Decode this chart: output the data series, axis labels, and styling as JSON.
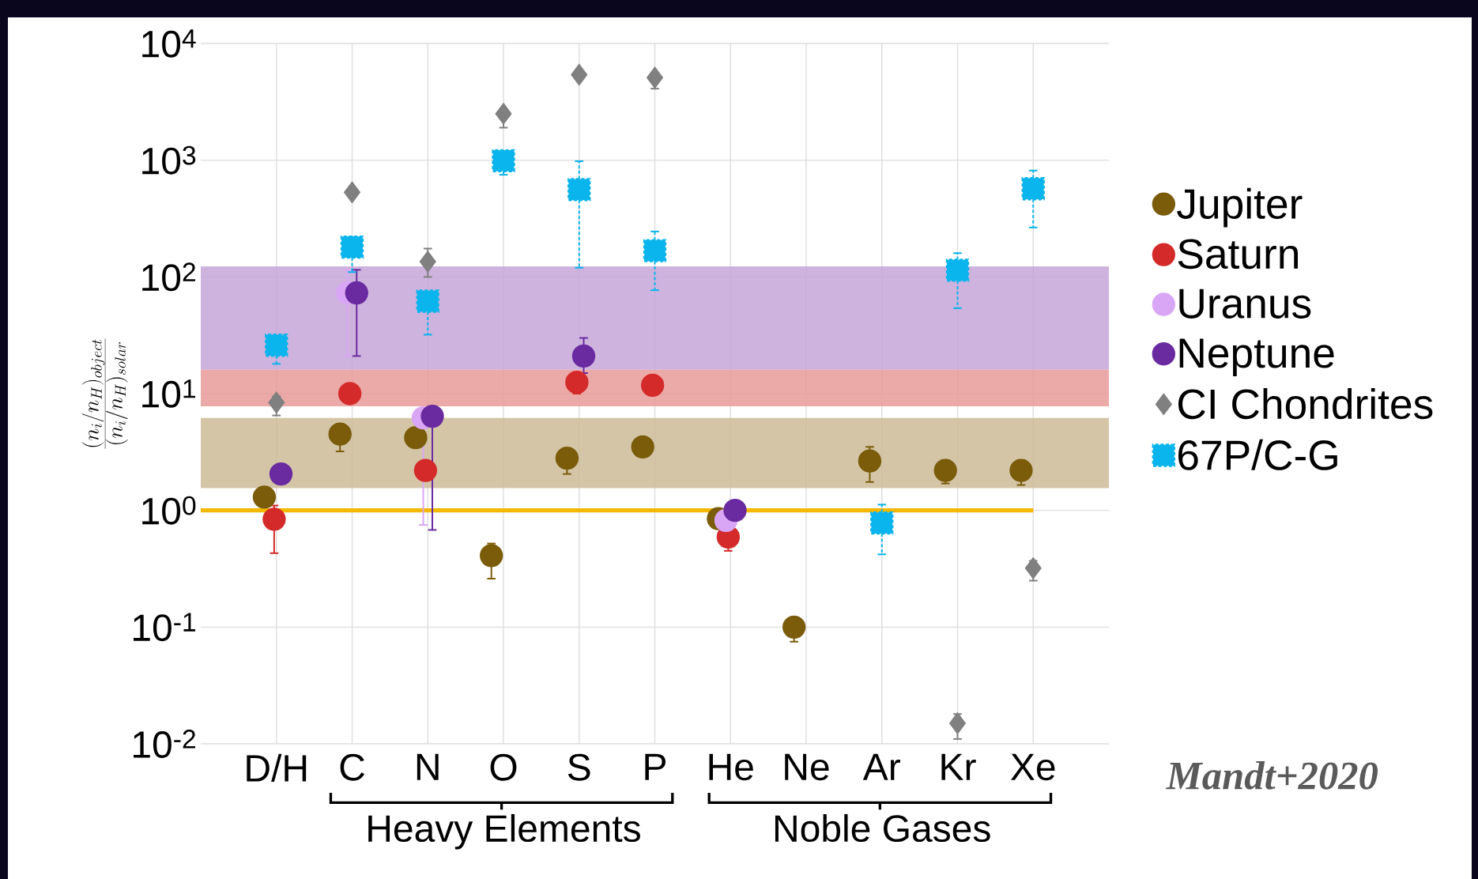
{
  "chart_data": {
    "type": "scatter",
    "categories": [
      "D/H",
      "C",
      "N",
      "O",
      "S",
      "P",
      "He",
      "Ne",
      "Ar",
      "Kr",
      "Xe"
    ],
    "ylabel": "\\frac{(n_i/n_H)_{object}}{(n_i/n_H)_{solar}}",
    "log": "y",
    "ylim": [
      0.01,
      10000
    ],
    "yticks": [
      {
        "value": 0.01,
        "label": "10$^{-2}$"
      },
      {
        "value": 0.1,
        "label": "10$^{-1}$"
      },
      {
        "value": 1,
        "label": "10$^{0}$"
      },
      {
        "value": 10,
        "label": "10$^{1}$"
      },
      {
        "value": 100,
        "label": "10$^{2}$"
      },
      {
        "value": 1000,
        "label": "10$^{3}$"
      },
      {
        "value": 10000,
        "label": "10$^{4}$"
      }
    ],
    "grid": true,
    "legend": "right",
    "series": [
      {
        "name": "Jupiter",
        "color": "#7a5c0a",
        "marker": "circle",
        "values": [
          1.3,
          4.5,
          4.2,
          0.41,
          2.8,
          3.5,
          0.85,
          0.1,
          2.65,
          2.2,
          2.2
        ],
        "errors": [
          null,
          [
            3.2,
            5.5
          ],
          null,
          [
            0.26,
            0.52
          ],
          [
            2.05,
            2.8
          ],
          null,
          null,
          [
            0.075,
            0.12
          ],
          [
            1.75,
            3.5
          ],
          [
            1.7,
            2.7
          ],
          [
            1.65,
            2.7
          ]
        ]
      },
      {
        "name": "Saturn",
        "color": "#d42a2a",
        "marker": "circle",
        "values": [
          0.84,
          10,
          2.2,
          null,
          12.5,
          11.8,
          0.59,
          null,
          null,
          null,
          null
        ],
        "errors": [
          [
            0.43,
            1.1
          ],
          null,
          null,
          null,
          [
            10,
            15
          ],
          null,
          [
            0.45,
            0.7
          ],
          null,
          null,
          null,
          null
        ]
      },
      {
        "name": "Uranus",
        "color": "#d9a6f5",
        "marker": "circle",
        "values": [
          null,
          73,
          6.2,
          null,
          null,
          null,
          0.82,
          null,
          null,
          null,
          null
        ],
        "errors": [
          null,
          [
            21,
            115
          ],
          [
            0.75,
            6.2
          ],
          null,
          null,
          null,
          null,
          null,
          null,
          null,
          null
        ]
      },
      {
        "name": "Neptune",
        "color": "#6a2aa0",
        "marker": "circle",
        "values": [
          2.05,
          73,
          6.4,
          null,
          21,
          null,
          1.0,
          null,
          null,
          null,
          null
        ],
        "errors": [
          null,
          [
            21,
            115
          ],
          [
            0.68,
            6.4
          ],
          null,
          [
            15,
            30
          ],
          null,
          null,
          null,
          null,
          null,
          null
        ]
      },
      {
        "name": "CI Chondrites",
        "color": "#808080",
        "marker": "diamond",
        "values": [
          8.4,
          530,
          135,
          2500,
          5400,
          5100,
          null,
          null,
          null,
          0.015,
          0.32
        ],
        "errors": [
          [
            6.5,
            9.5
          ],
          null,
          [
            100,
            175
          ],
          [
            1900,
            2500
          ],
          null,
          [
            4100,
            5100
          ],
          null,
          null,
          null,
          [
            0.011,
            0.018
          ],
          [
            0.25,
            0.37
          ]
        ]
      },
      {
        "name": "67P/C-G",
        "color": "#0ab4ec",
        "marker": "square",
        "values": [
          26,
          180,
          62,
          990,
          560,
          168,
          null,
          null,
          0.78,
          114,
          570
        ],
        "errors": [
          [
            18,
            26
          ],
          [
            110,
            220
          ],
          [
            32,
            62
          ],
          [
            750,
            990
          ],
          [
            120,
            980
          ],
          [
            77,
            245
          ],
          null,
          null,
          [
            0.42,
            1.12
          ],
          [
            54,
            160
          ],
          [
            265,
            815
          ]
        ]
      }
    ],
    "bands": [
      {
        "axis": "y",
        "from": 16,
        "to": 123,
        "color": "#c5a6d8"
      },
      {
        "axis": "y",
        "from": 7.8,
        "to": 16,
        "color": "#e89a98"
      },
      {
        "axis": "y",
        "from": 1.55,
        "to": 6.2,
        "color": "#cdbb98"
      }
    ],
    "ref_lines": [
      {
        "axis": "y",
        "value": 1,
        "color": "#f5b800"
      }
    ],
    "annotations": [
      "Heavy Elements",
      "Noble Gases",
      "Mandt+2020"
    ]
  }
}
